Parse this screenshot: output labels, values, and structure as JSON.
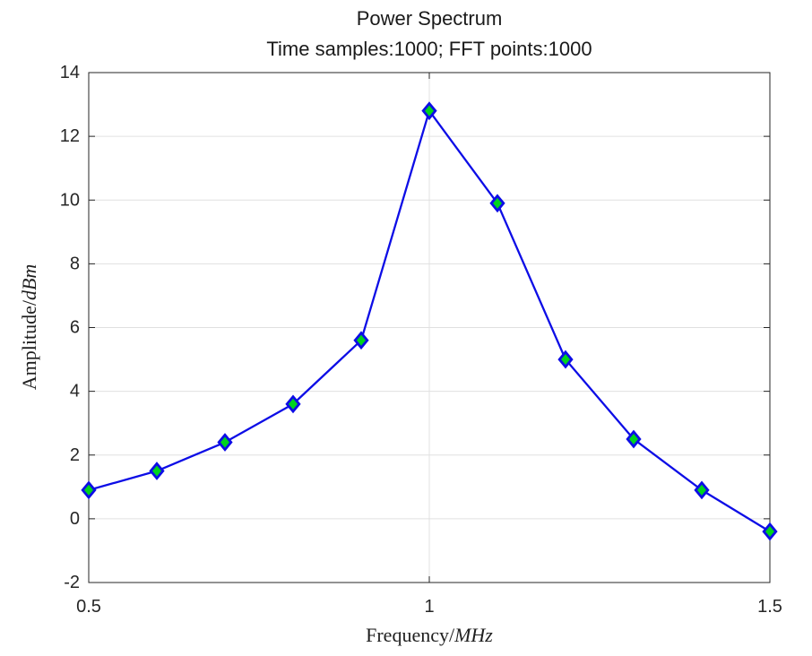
{
  "header": {
    "title": "Power Spectrum",
    "subtitle": "Time samples:1000; FFT points:1000"
  },
  "axis_labels": {
    "xlabel_roman": "Frequency/",
    "xlabel_italic": "MHz",
    "ylabel_roman": "Amplitude/",
    "ylabel_italic": "dBm"
  },
  "chart_data": {
    "type": "line",
    "title": "Power Spectrum",
    "subtitle": "Time samples:1000; FFT points:1000",
    "xlabel": "Frequency/MHz",
    "ylabel": "Amplitude/dBm",
    "x": [
      0.5,
      0.6,
      0.7,
      0.8,
      0.9,
      1.0,
      1.1,
      1.2,
      1.3,
      1.4,
      1.5
    ],
    "values": [
      0.9,
      1.5,
      2.4,
      3.6,
      5.6,
      12.8,
      9.9,
      5.0,
      2.5,
      0.9,
      -0.4
    ],
    "xlim": [
      0.5,
      1.5
    ],
    "ylim": [
      -2,
      14
    ],
    "xticks": [
      0.5,
      1,
      1.5
    ],
    "xtick_labels": [
      "0.5",
      "1",
      "1.5"
    ],
    "yticks": [
      14,
      12,
      10,
      8,
      6,
      4,
      2,
      0,
      -2
    ],
    "ytick_labels": [
      "14",
      "12",
      "10",
      "8",
      "6",
      "4",
      "2",
      "0",
      "-2"
    ],
    "grid": true,
    "legend": null,
    "marker": "diamond",
    "colors": {
      "line": "#0d0de6",
      "marker_fill": "#00d41e",
      "marker_edge": "#0d0de6",
      "grid": "#e0e0e0",
      "axis": "#262626",
      "tick_text": "#262626",
      "title_text": "#1a1a1a"
    }
  }
}
